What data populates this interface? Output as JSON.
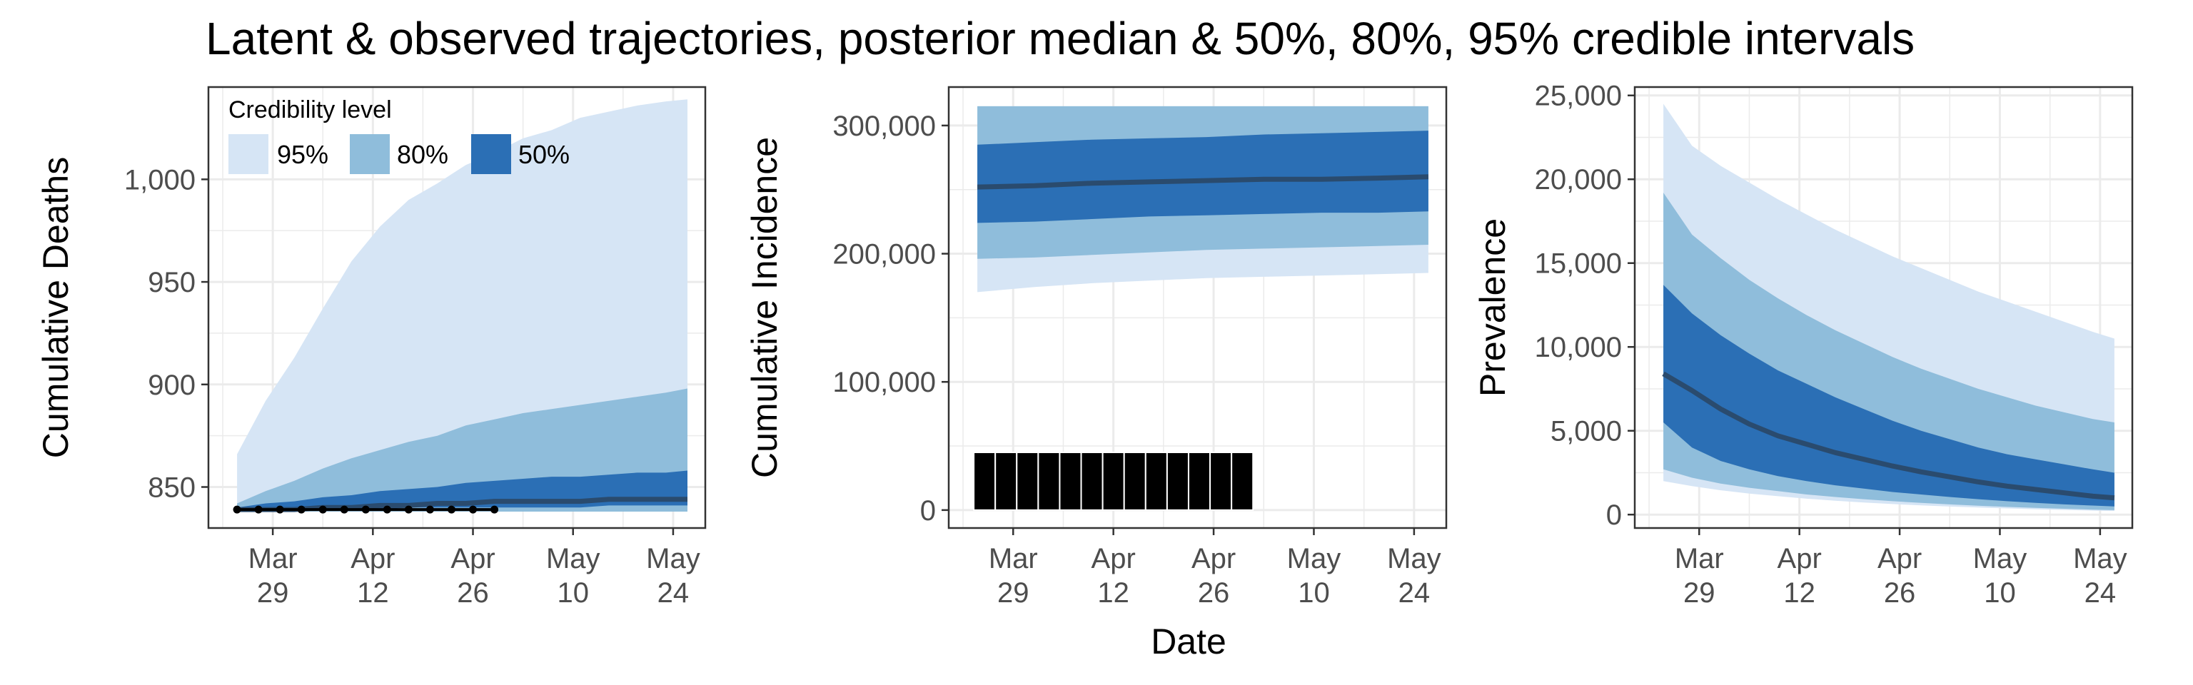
{
  "title": "Latent & observed trajectories, posterior median & 50%, 80%, 95% credible intervals",
  "xlabel": "Date",
  "colors": {
    "band95": "#d6e5f5",
    "band80": "#8fbddb",
    "band50": "#2b6fb5",
    "median": "#2a4b6e",
    "grid": "#ebebeb",
    "panel_border": "#333333",
    "observed": "#000000"
  },
  "legend": {
    "title": "Credibility level",
    "placement": "top-left of first panel",
    "items": [
      {
        "label": "95%",
        "color": "#d6e5f5"
      },
      {
        "label": "80%",
        "color": "#8fbddb"
      },
      {
        "label": "50%",
        "color": "#2b6fb5"
      }
    ]
  },
  "x_ticks": [
    {
      "l1": "Mar",
      "l2": "29",
      "day": 29
    },
    {
      "l1": "Apr",
      "l2": "12",
      "day": 43
    },
    {
      "l1": "Apr",
      "l2": "26",
      "day": 57
    },
    {
      "l1": "May",
      "l2": "10",
      "day": 71
    },
    {
      "l1": "May",
      "l2": "24",
      "day": 85
    }
  ],
  "chart_data": [
    {
      "type": "area",
      "ylabel": "Cumulative Deaths",
      "xlim": [
        20,
        89.5
      ],
      "ylim": [
        830,
        1045
      ],
      "yticks": [
        850,
        900,
        950,
        1000
      ],
      "ytick_labels": [
        "850",
        "900",
        "950",
        "1,000"
      ],
      "x": [
        24,
        28,
        32,
        36,
        40,
        44,
        48,
        52,
        56,
        60,
        64,
        68,
        72,
        76,
        80,
        84,
        87
      ],
      "band95_lo": [
        838,
        838,
        838,
        838,
        838,
        838,
        838,
        838,
        838,
        838,
        838,
        838,
        838,
        838,
        838,
        838,
        838
      ],
      "band95_hi": [
        866,
        892,
        913,
        937,
        960,
        977,
        990,
        998,
        1007,
        1013,
        1020,
        1024,
        1030,
        1033,
        1036,
        1038,
        1039
      ],
      "band80_lo": [
        838,
        838,
        838,
        838,
        838,
        838,
        838,
        838,
        838,
        838,
        838,
        838,
        838,
        838,
        838,
        838,
        838
      ],
      "band80_hi": [
        842,
        848,
        853,
        859,
        864,
        868,
        872,
        875,
        880,
        883,
        886,
        888,
        890,
        892,
        894,
        896,
        898
      ],
      "band50_lo": [
        838,
        838,
        839,
        839,
        839,
        839,
        840,
        840,
        840,
        840,
        840,
        840,
        840,
        841,
        841,
        841,
        841
      ],
      "band50_hi": [
        840,
        842,
        843,
        845,
        846,
        848,
        849,
        850,
        852,
        853,
        854,
        855,
        855,
        856,
        857,
        857,
        858
      ],
      "median": [
        839,
        839,
        839,
        840,
        840,
        841,
        841,
        842,
        842,
        843,
        843,
        843,
        843,
        844,
        844,
        844,
        844
      ],
      "observed": {
        "x": [
          24,
          27,
          30,
          33,
          36,
          39,
          42,
          45,
          48,
          51,
          54,
          57,
          60
        ],
        "y": [
          839,
          839,
          839,
          839,
          839,
          839,
          839,
          839,
          839,
          839,
          839,
          839,
          839
        ]
      }
    },
    {
      "type": "area",
      "ylabel": "Cumulative Incidence",
      "xlim": [
        20,
        89.5
      ],
      "ylim": [
        -14000,
        330000
      ],
      "yticks": [
        0,
        100000,
        200000,
        300000
      ],
      "ytick_labels": [
        "0",
        "100,000",
        "200,000",
        "300,000"
      ],
      "x": [
        24,
        32,
        40,
        48,
        56,
        64,
        72,
        80,
        87
      ],
      "band95_lo": [
        170000,
        174000,
        177000,
        179000,
        181000,
        182000,
        183000,
        184000,
        185000
      ],
      "band95_hi": [
        315000,
        315000,
        315000,
        315000,
        315000,
        315000,
        315000,
        315000,
        315000
      ],
      "band80_lo": [
        196000,
        197000,
        199000,
        201000,
        203000,
        204000,
        205000,
        206000,
        207000
      ],
      "band80_hi": [
        315000,
        315000,
        315000,
        315000,
        315000,
        315000,
        315000,
        315000,
        315000
      ],
      "band50_lo": [
        224000,
        225000,
        227000,
        229000,
        230000,
        231000,
        232000,
        232000,
        233000
      ],
      "band50_hi": [
        285000,
        287000,
        289000,
        290000,
        291000,
        293000,
        294000,
        295000,
        296000
      ],
      "median": [
        252000,
        253000,
        255000,
        256000,
        257000,
        258000,
        258000,
        259000,
        260000
      ],
      "observed_bars": {
        "x": [
          25,
          28,
          31,
          34,
          37,
          40,
          43,
          46,
          49,
          52,
          55,
          58,
          61
        ],
        "y": [
          45000,
          45000,
          45000,
          45000,
          45000,
          45000,
          45000,
          45000,
          45000,
          45000,
          45000,
          45000,
          45000
        ]
      }
    },
    {
      "type": "area",
      "ylabel": "Prevalence",
      "xlim": [
        20,
        89.5
      ],
      "ylim": [
        -800,
        25500
      ],
      "yticks": [
        0,
        5000,
        10000,
        15000,
        20000,
        25000
      ],
      "ytick_labels": [
        "0",
        "5,000",
        "10,000",
        "15,000",
        "20,000",
        "25,000"
      ],
      "x": [
        24,
        28,
        32,
        36,
        40,
        44,
        48,
        52,
        56,
        60,
        64,
        68,
        72,
        76,
        80,
        84,
        87
      ],
      "band95_lo": [
        2000,
        1700,
        1450,
        1250,
        1100,
        950,
        830,
        720,
        630,
        550,
        480,
        420,
        370,
        320,
        280,
        240,
        220
      ],
      "band95_hi": [
        24500,
        22000,
        20800,
        19800,
        18800,
        17900,
        17000,
        16200,
        15400,
        14700,
        14000,
        13300,
        12700,
        12100,
        11500,
        10900,
        10500
      ],
      "band80_lo": [
        2700,
        2200,
        1850,
        1600,
        1400,
        1200,
        1050,
        920,
        800,
        700,
        610,
        530,
        460,
        400,
        350,
        300,
        270
      ],
      "band80_hi": [
        19200,
        16700,
        15300,
        14000,
        12900,
        11900,
        11000,
        10200,
        9400,
        8700,
        8100,
        7500,
        7000,
        6500,
        6100,
        5700,
        5500
      ],
      "band50_lo": [
        5500,
        4000,
        3200,
        2700,
        2300,
        2000,
        1750,
        1550,
        1350,
        1200,
        1050,
        920,
        800,
        700,
        610,
        540,
        490
      ],
      "band50_hi": [
        13700,
        12000,
        10700,
        9600,
        8600,
        7800,
        7000,
        6300,
        5600,
        5000,
        4500,
        4000,
        3600,
        3300,
        3000,
        2700,
        2500
      ],
      "median": [
        8400,
        7400,
        6300,
        5400,
        4700,
        4200,
        3700,
        3300,
        2900,
        2550,
        2250,
        1950,
        1700,
        1500,
        1300,
        1100,
        1000
      ]
    }
  ]
}
